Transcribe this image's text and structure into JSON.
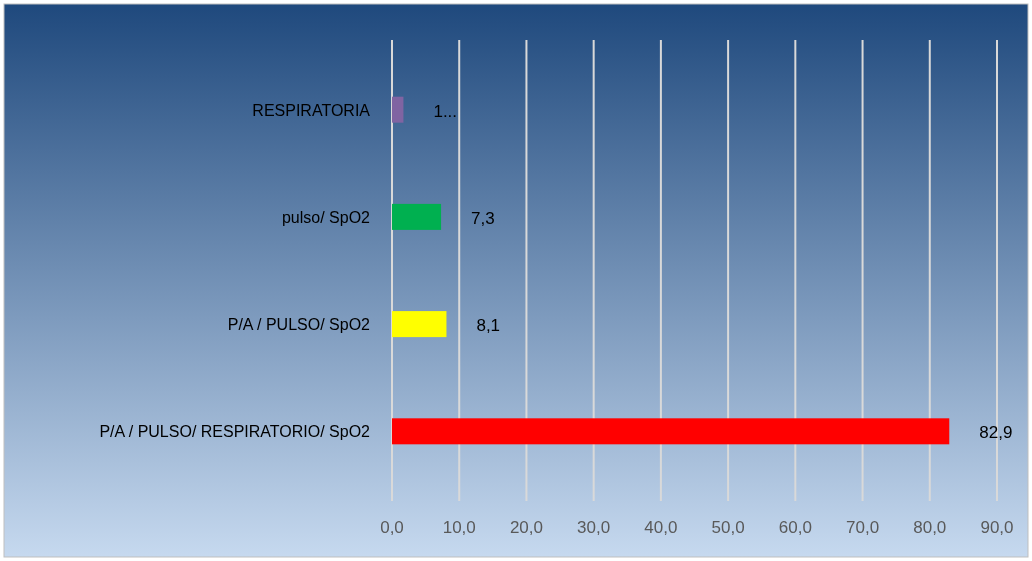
{
  "chart_data": {
    "type": "bar",
    "orientation": "horizontal",
    "categories": [
      "RESPIRATORIA",
      "pulso/ SpO2",
      "P/A / PULSO/ SpO2",
      "P/A / PULSO/ RESPIRATORIO/ SpO2"
    ],
    "values": [
      1.7,
      7.3,
      8.1,
      82.9
    ],
    "colors": [
      "#8064a2",
      "#00b050",
      "#ffff00",
      "#ff0000"
    ],
    "value_labels": [
      "1...",
      "7,3",
      "8,1",
      "82,9"
    ],
    "xlim": [
      0,
      90
    ],
    "xticks": [
      {
        "value": 0,
        "label": "0,0"
      },
      {
        "value": 10,
        "label": "10,0"
      },
      {
        "value": 20,
        "label": "20,0"
      },
      {
        "value": 30,
        "label": "30,0"
      },
      {
        "value": 40,
        "label": "40,0"
      },
      {
        "value": 50,
        "label": "50,0"
      },
      {
        "value": 60,
        "label": "60,0"
      },
      {
        "value": 70,
        "label": "70,0"
      },
      {
        "value": 80,
        "label": "80,0"
      },
      {
        "value": 90,
        "label": "90,0"
      }
    ],
    "grid": "x"
  }
}
